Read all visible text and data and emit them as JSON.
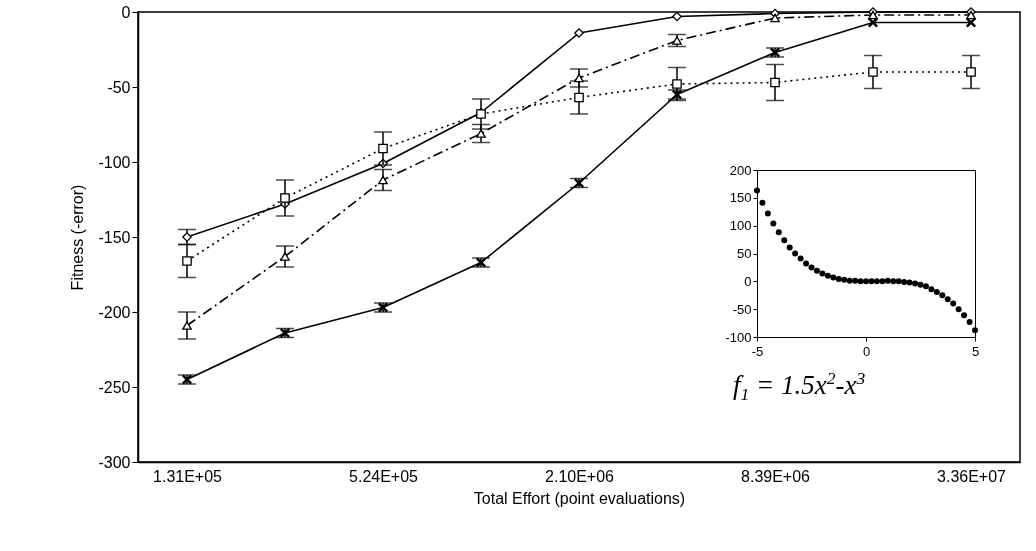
{
  "chart_data": [
    {
      "type": "line",
      "xlabel": "Total Effort (point evaluations)",
      "ylabel": "Fitness (-error)",
      "categories": [
        "1.31E+05",
        null,
        "5.24E+05",
        null,
        "2.10E+06",
        null,
        "8.39E+06",
        null,
        "3.36E+07"
      ],
      "ylim": [
        -300,
        0
      ],
      "yticks": [
        -300,
        -250,
        -200,
        -150,
        -100,
        -50,
        0
      ],
      "grid": false,
      "series": [
        {
          "color": "#000000",
          "marker": "diamond",
          "line_style": "solid",
          "values": [
            -150,
            -128,
            -101,
            -67,
            -14,
            -3,
            -1,
            0,
            0
          ],
          "errors": [
            5,
            null,
            null,
            null,
            null,
            null,
            null,
            null,
            null
          ]
        },
        {
          "color": "#000000",
          "marker": "square",
          "line_style": "dotted",
          "values": [
            -166,
            -124,
            -91,
            -68,
            -57,
            -48,
            -47,
            -40,
            -40
          ],
          "errors": [
            11,
            12,
            11,
            10,
            11,
            11,
            12,
            11,
            11
          ]
        },
        {
          "color": "#000000",
          "marker": "triangle",
          "line_style": "dashed",
          "values": [
            -209,
            -163,
            -112,
            -81,
            -44,
            -19,
            -4,
            -2,
            -2
          ],
          "errors": [
            9,
            7,
            7,
            6,
            6,
            4,
            null,
            null,
            null
          ]
        },
        {
          "color": "#000000",
          "marker": "cross",
          "line_style": "solid",
          "values": [
            -245,
            -214,
            -197,
            -167,
            -114,
            -55,
            -27,
            -7,
            -7
          ],
          "errors": [
            3,
            3,
            3,
            3,
            3,
            3,
            3,
            null,
            null
          ]
        }
      ]
    },
    {
      "type": "scatter",
      "marker": "circle",
      "grid": false,
      "xlim": [
        -5,
        5
      ],
      "xticks": [
        -5,
        0,
        5
      ],
      "ylim": [
        -100,
        200
      ],
      "yticks": [
        -100,
        -50,
        0,
        50,
        100,
        150,
        200
      ],
      "annotations": [
        "f$_{1}$ = 1.5x$^{2}$-x$^{3}$"
      ],
      "x": [
        -5,
        -4.75,
        -4.5,
        -4.25,
        -4,
        -3.75,
        -3.5,
        -3.25,
        -3,
        -2.75,
        -2.5,
        -2.25,
        -2,
        -1.75,
        -1.5,
        -1.25,
        -1,
        -0.75,
        -0.5,
        -0.25,
        0,
        0.25,
        0.5,
        0.75,
        1,
        1.25,
        1.5,
        1.75,
        2,
        2.25,
        2.5,
        2.75,
        3,
        3.25,
        3.5,
        3.75,
        4,
        4.25,
        4.5,
        4.75,
        5
      ],
      "series": [
        {
          "color": "#000000",
          "values": [
            163,
            141,
            122,
            104,
            88,
            74,
            61,
            50,
            41,
            32,
            25,
            19,
            14,
            10,
            7,
            4,
            3,
            1,
            1,
            0,
            0,
            0,
            0,
            0,
            1,
            0,
            0,
            -1,
            -2,
            -4,
            -6,
            -9,
            -14,
            -19,
            -25,
            -32,
            -40,
            -50,
            -61,
            -73,
            -88
          ]
        }
      ]
    }
  ]
}
